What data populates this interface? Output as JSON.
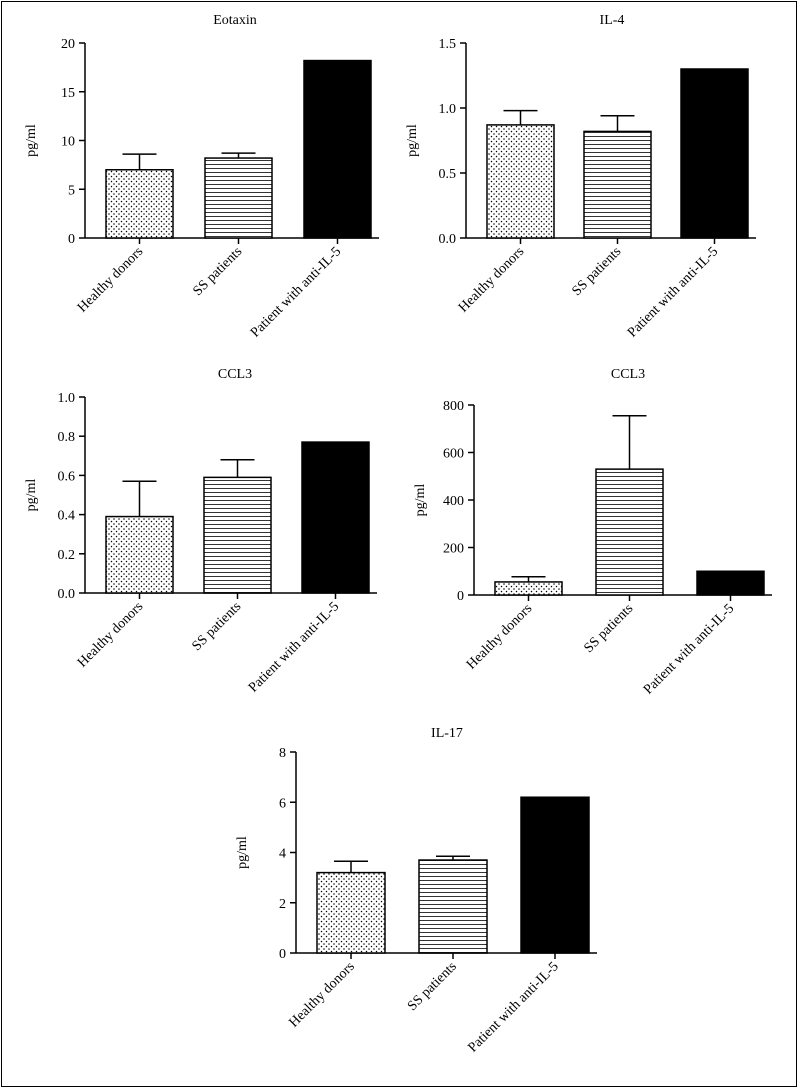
{
  "chart_data": [
    {
      "type": "bar",
      "title": "Eotaxin",
      "ylabel": "pg/ml",
      "categories": [
        "Healthy donors",
        "SS patients",
        "Patient with anti-IL-5"
      ],
      "values": [
        7.0,
        8.2,
        18.2
      ],
      "errors": [
        1.6,
        0.5,
        0
      ],
      "ylim": [
        0,
        20
      ],
      "yticks": [
        "0",
        "5",
        "10",
        "15",
        "20"
      ],
      "patterns": [
        "dots",
        "hlines",
        "solid"
      ]
    },
    {
      "type": "bar",
      "title": "IL-4",
      "ylabel": "pg/ml",
      "categories": [
        "Healthy donors",
        "SS patients",
        "Patient with anti-IL-5"
      ],
      "values": [
        0.87,
        0.82,
        1.3
      ],
      "errors": [
        0.11,
        0.12,
        0
      ],
      "ylim": [
        0,
        1.5
      ],
      "yticks": [
        "0.0",
        "0.5",
        "1.0",
        "1.5"
      ],
      "patterns": [
        "dots",
        "hlines",
        "solid"
      ]
    },
    {
      "type": "bar",
      "title": "CCL3",
      "ylabel": "pg/ml",
      "categories": [
        "Healthy donors",
        "SS patients",
        "Patient with anti-IL-5"
      ],
      "values": [
        0.39,
        0.59,
        0.77
      ],
      "errors": [
        0.18,
        0.09,
        0
      ],
      "ylim": [
        0,
        1.0
      ],
      "yticks": [
        "0.0",
        "0.2",
        "0.4",
        "0.6",
        "0.8",
        "1.0"
      ],
      "patterns": [
        "dots",
        "hlines",
        "solid"
      ]
    },
    {
      "type": "bar",
      "title": "CCL3",
      "ylabel": "pg/ml",
      "categories": [
        "Healthy donors",
        "SS patients",
        "Patient with anti-IL-5"
      ],
      "values": [
        55,
        530,
        100
      ],
      "errors": [
        22,
        225,
        0
      ],
      "ylim": [
        0,
        800
      ],
      "yticks": [
        "0",
        "200",
        "400",
        "600",
        "800"
      ],
      "patterns": [
        "dots",
        "hlines",
        "solid"
      ]
    },
    {
      "type": "bar",
      "title": "IL-17",
      "ylabel": "pg/ml",
      "categories": [
        "Healthy donors",
        "SS patients",
        "Patient with anti-IL-5"
      ],
      "values": [
        3.2,
        3.7,
        6.2
      ],
      "errors": [
        0.45,
        0.15,
        0
      ],
      "ylim": [
        0,
        8
      ],
      "yticks": [
        "0",
        "2",
        "4",
        "6",
        "8"
      ],
      "patterns": [
        "dots",
        "hlines",
        "solid"
      ]
    }
  ]
}
